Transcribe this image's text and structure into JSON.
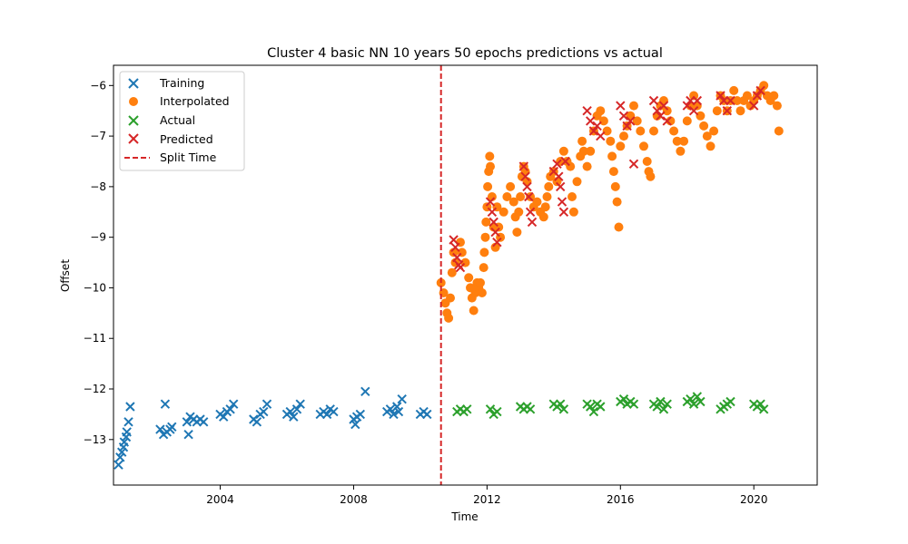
{
  "chart_data": {
    "type": "scatter",
    "title": "Cluster 4 basic NN 10 years 50 epochs predictions vs actual",
    "xlabel": "Time",
    "ylabel": "Offset",
    "xlim": [
      2000.8,
      2021.9
    ],
    "ylim": [
      -13.9,
      -5.6
    ],
    "xticks": [
      2004,
      2008,
      2012,
      2016,
      2020
    ],
    "yticks": [
      -13,
      -12,
      -11,
      -10,
      -9,
      -8,
      -7,
      -6
    ],
    "legend_position": "upper left",
    "grid": false,
    "split_time": 2010.62,
    "series": [
      {
        "name": "Training",
        "marker": "x",
        "color": "#1f77b4",
        "points": [
          [
            2000.95,
            -13.5
          ],
          [
            2001.0,
            -13.35
          ],
          [
            2001.05,
            -13.25
          ],
          [
            2001.1,
            -13.15
          ],
          [
            2001.12,
            -13.05
          ],
          [
            2001.18,
            -12.95
          ],
          [
            2001.2,
            -12.85
          ],
          [
            2001.25,
            -12.65
          ],
          [
            2001.3,
            -12.35
          ],
          [
            2002.2,
            -12.8
          ],
          [
            2002.3,
            -12.9
          ],
          [
            2002.35,
            -12.3
          ],
          [
            2002.4,
            -12.85
          ],
          [
            2002.5,
            -12.8
          ],
          [
            2002.55,
            -12.75
          ],
          [
            2003.0,
            -12.65
          ],
          [
            2003.05,
            -12.9
          ],
          [
            2003.1,
            -12.55
          ],
          [
            2003.2,
            -12.6
          ],
          [
            2003.3,
            -12.65
          ],
          [
            2003.4,
            -12.6
          ],
          [
            2003.5,
            -12.65
          ],
          [
            2004.0,
            -12.5
          ],
          [
            2004.1,
            -12.55
          ],
          [
            2004.2,
            -12.45
          ],
          [
            2004.3,
            -12.4
          ],
          [
            2004.4,
            -12.3
          ],
          [
            2005.0,
            -12.6
          ],
          [
            2005.1,
            -12.65
          ],
          [
            2005.2,
            -12.5
          ],
          [
            2005.3,
            -12.45
          ],
          [
            2005.4,
            -12.3
          ],
          [
            2006.0,
            -12.5
          ],
          [
            2006.1,
            -12.45
          ],
          [
            2006.2,
            -12.55
          ],
          [
            2006.3,
            -12.4
          ],
          [
            2006.4,
            -12.3
          ],
          [
            2007.0,
            -12.5
          ],
          [
            2007.1,
            -12.45
          ],
          [
            2007.2,
            -12.5
          ],
          [
            2007.3,
            -12.4
          ],
          [
            2007.4,
            -12.45
          ],
          [
            2008.0,
            -12.6
          ],
          [
            2008.05,
            -12.7
          ],
          [
            2008.1,
            -12.55
          ],
          [
            2008.2,
            -12.5
          ],
          [
            2008.35,
            -12.05
          ],
          [
            2009.0,
            -12.45
          ],
          [
            2009.1,
            -12.4
          ],
          [
            2009.2,
            -12.5
          ],
          [
            2009.3,
            -12.35
          ],
          [
            2009.35,
            -12.45
          ],
          [
            2009.45,
            -12.2
          ],
          [
            2010.0,
            -12.5
          ],
          [
            2010.1,
            -12.45
          ],
          [
            2010.2,
            -12.5
          ]
        ]
      },
      {
        "name": "Interpolated",
        "marker": "o",
        "color": "#ff7f0e",
        "points": [
          [
            2010.62,
            -9.9
          ],
          [
            2010.7,
            -10.1
          ],
          [
            2010.75,
            -10.3
          ],
          [
            2010.8,
            -10.5
          ],
          [
            2010.85,
            -10.6
          ],
          [
            2010.9,
            -10.2
          ],
          [
            2010.95,
            -9.7
          ],
          [
            2011.0,
            -9.3
          ],
          [
            2011.05,
            -9.5
          ],
          [
            2011.2,
            -9.1
          ],
          [
            2011.25,
            -9.3
          ],
          [
            2011.35,
            -9.5
          ],
          [
            2011.45,
            -9.8
          ],
          [
            2011.5,
            -10.0
          ],
          [
            2011.55,
            -10.2
          ],
          [
            2011.6,
            -10.45
          ],
          [
            2011.65,
            -10.1
          ],
          [
            2011.7,
            -9.9
          ],
          [
            2011.75,
            -10.0
          ],
          [
            2011.8,
            -9.9
          ],
          [
            2011.85,
            -10.1
          ],
          [
            2011.9,
            -9.6
          ],
          [
            2011.92,
            -9.3
          ],
          [
            2011.95,
            -9.0
          ],
          [
            2011.97,
            -8.7
          ],
          [
            2012.0,
            -8.4
          ],
          [
            2012.02,
            -8.0
          ],
          [
            2012.05,
            -7.7
          ],
          [
            2012.08,
            -7.4
          ],
          [
            2012.1,
            -7.6
          ],
          [
            2012.15,
            -8.2
          ],
          [
            2012.2,
            -8.8
          ],
          [
            2012.25,
            -9.2
          ],
          [
            2012.3,
            -8.4
          ],
          [
            2012.35,
            -8.8
          ],
          [
            2012.4,
            -9.0
          ],
          [
            2012.5,
            -8.5
          ],
          [
            2012.6,
            -8.2
          ],
          [
            2012.7,
            -8.0
          ],
          [
            2012.8,
            -8.3
          ],
          [
            2012.85,
            -8.6
          ],
          [
            2012.9,
            -8.9
          ],
          [
            2012.95,
            -8.5
          ],
          [
            2013.0,
            -8.2
          ],
          [
            2013.05,
            -7.8
          ],
          [
            2013.1,
            -7.6
          ],
          [
            2013.15,
            -7.7
          ],
          [
            2013.2,
            -7.9
          ],
          [
            2013.3,
            -8.2
          ],
          [
            2013.4,
            -8.4
          ],
          [
            2013.5,
            -8.3
          ],
          [
            2013.6,
            -8.5
          ],
          [
            2013.7,
            -8.6
          ],
          [
            2013.75,
            -8.4
          ],
          [
            2013.8,
            -8.2
          ],
          [
            2013.85,
            -8.0
          ],
          [
            2013.9,
            -7.8
          ],
          [
            2014.0,
            -7.7
          ],
          [
            2014.1,
            -7.9
          ],
          [
            2014.2,
            -7.5
          ],
          [
            2014.3,
            -7.3
          ],
          [
            2014.4,
            -7.5
          ],
          [
            2014.5,
            -7.6
          ],
          [
            2014.55,
            -8.2
          ],
          [
            2014.6,
            -8.5
          ],
          [
            2014.7,
            -7.9
          ],
          [
            2014.8,
            -7.4
          ],
          [
            2014.85,
            -7.1
          ],
          [
            2014.9,
            -7.3
          ],
          [
            2015.0,
            -7.6
          ],
          [
            2015.1,
            -7.3
          ],
          [
            2015.2,
            -6.9
          ],
          [
            2015.3,
            -6.6
          ],
          [
            2015.4,
            -6.5
          ],
          [
            2015.5,
            -6.7
          ],
          [
            2015.6,
            -6.9
          ],
          [
            2015.7,
            -7.1
          ],
          [
            2015.75,
            -7.4
          ],
          [
            2015.8,
            -7.7
          ],
          [
            2015.85,
            -8.0
          ],
          [
            2015.9,
            -8.3
          ],
          [
            2015.95,
            -8.8
          ],
          [
            2016.0,
            -7.2
          ],
          [
            2016.1,
            -7.0
          ],
          [
            2016.2,
            -6.8
          ],
          [
            2016.3,
            -6.6
          ],
          [
            2016.4,
            -6.4
          ],
          [
            2016.5,
            -6.7
          ],
          [
            2016.6,
            -6.9
          ],
          [
            2016.7,
            -7.2
          ],
          [
            2016.8,
            -7.5
          ],
          [
            2016.85,
            -7.7
          ],
          [
            2016.9,
            -7.8
          ],
          [
            2017.0,
            -6.9
          ],
          [
            2017.1,
            -6.6
          ],
          [
            2017.2,
            -6.4
          ],
          [
            2017.3,
            -6.3
          ],
          [
            2017.4,
            -6.5
          ],
          [
            2017.5,
            -6.7
          ],
          [
            2017.6,
            -6.9
          ],
          [
            2017.7,
            -7.1
          ],
          [
            2017.8,
            -7.3
          ],
          [
            2017.9,
            -7.1
          ],
          [
            2018.0,
            -6.7
          ],
          [
            2018.1,
            -6.4
          ],
          [
            2018.2,
            -6.2
          ],
          [
            2018.3,
            -6.4
          ],
          [
            2018.4,
            -6.6
          ],
          [
            2018.5,
            -6.8
          ],
          [
            2018.6,
            -7.0
          ],
          [
            2018.7,
            -7.2
          ],
          [
            2018.8,
            -6.9
          ],
          [
            2018.9,
            -6.5
          ],
          [
            2019.0,
            -6.2
          ],
          [
            2019.1,
            -6.3
          ],
          [
            2019.2,
            -6.5
          ],
          [
            2019.3,
            -6.3
          ],
          [
            2019.4,
            -6.1
          ],
          [
            2019.5,
            -6.3
          ],
          [
            2019.6,
            -6.5
          ],
          [
            2019.7,
            -6.3
          ],
          [
            2019.8,
            -6.2
          ],
          [
            2019.9,
            -6.4
          ],
          [
            2020.0,
            -6.3
          ],
          [
            2020.1,
            -6.2
          ],
          [
            2020.2,
            -6.1
          ],
          [
            2020.3,
            -6.0
          ],
          [
            2020.4,
            -6.2
          ],
          [
            2020.5,
            -6.3
          ],
          [
            2020.6,
            -6.2
          ],
          [
            2020.7,
            -6.4
          ],
          [
            2020.75,
            -6.9
          ]
        ]
      },
      {
        "name": "Actual",
        "marker": "x",
        "color": "#2ca02c",
        "points": [
          [
            2011.1,
            -12.45
          ],
          [
            2011.2,
            -12.4
          ],
          [
            2011.3,
            -12.45
          ],
          [
            2011.4,
            -12.4
          ],
          [
            2012.1,
            -12.4
          ],
          [
            2012.2,
            -12.5
          ],
          [
            2012.3,
            -12.45
          ],
          [
            2013.0,
            -12.35
          ],
          [
            2013.1,
            -12.4
          ],
          [
            2013.2,
            -12.35
          ],
          [
            2013.3,
            -12.4
          ],
          [
            2014.0,
            -12.3
          ],
          [
            2014.1,
            -12.35
          ],
          [
            2014.2,
            -12.3
          ],
          [
            2014.3,
            -12.4
          ],
          [
            2015.0,
            -12.3
          ],
          [
            2015.1,
            -12.35
          ],
          [
            2015.2,
            -12.45
          ],
          [
            2015.3,
            -12.3
          ],
          [
            2015.4,
            -12.35
          ],
          [
            2016.0,
            -12.25
          ],
          [
            2016.1,
            -12.2
          ],
          [
            2016.2,
            -12.3
          ],
          [
            2016.3,
            -12.25
          ],
          [
            2016.4,
            -12.3
          ],
          [
            2017.0,
            -12.3
          ],
          [
            2017.1,
            -12.35
          ],
          [
            2017.2,
            -12.25
          ],
          [
            2017.3,
            -12.4
          ],
          [
            2017.4,
            -12.3
          ],
          [
            2018.0,
            -12.25
          ],
          [
            2018.1,
            -12.2
          ],
          [
            2018.2,
            -12.3
          ],
          [
            2018.3,
            -12.15
          ],
          [
            2018.4,
            -12.25
          ],
          [
            2019.0,
            -12.4
          ],
          [
            2019.1,
            -12.35
          ],
          [
            2019.2,
            -12.3
          ],
          [
            2019.3,
            -12.25
          ],
          [
            2020.0,
            -12.3
          ],
          [
            2020.1,
            -12.35
          ],
          [
            2020.2,
            -12.3
          ],
          [
            2020.3,
            -12.4
          ]
        ]
      },
      {
        "name": "Predicted",
        "marker": "x",
        "color": "#d62728",
        "points": [
          [
            2011.0,
            -9.05
          ],
          [
            2011.05,
            -9.2
          ],
          [
            2011.1,
            -9.4
          ],
          [
            2011.15,
            -9.55
          ],
          [
            2011.2,
            -9.6
          ],
          [
            2012.1,
            -8.3
          ],
          [
            2012.15,
            -8.5
          ],
          [
            2012.2,
            -8.7
          ],
          [
            2012.25,
            -8.9
          ],
          [
            2012.3,
            -9.1
          ],
          [
            2013.1,
            -7.6
          ],
          [
            2013.15,
            -7.8
          ],
          [
            2013.2,
            -8.0
          ],
          [
            2013.25,
            -8.2
          ],
          [
            2013.3,
            -8.5
          ],
          [
            2013.35,
            -8.7
          ],
          [
            2014.0,
            -7.7
          ],
          [
            2014.1,
            -7.55
          ],
          [
            2014.15,
            -7.8
          ],
          [
            2014.2,
            -8.0
          ],
          [
            2014.25,
            -8.3
          ],
          [
            2014.3,
            -8.5
          ],
          [
            2014.35,
            -7.5
          ],
          [
            2015.0,
            -6.5
          ],
          [
            2015.1,
            -6.7
          ],
          [
            2015.2,
            -6.9
          ],
          [
            2015.3,
            -6.8
          ],
          [
            2015.4,
            -7.0
          ],
          [
            2016.0,
            -6.4
          ],
          [
            2016.1,
            -6.6
          ],
          [
            2016.2,
            -6.8
          ],
          [
            2016.3,
            -6.7
          ],
          [
            2016.4,
            -7.55
          ],
          [
            2017.0,
            -6.3
          ],
          [
            2017.1,
            -6.5
          ],
          [
            2017.2,
            -6.6
          ],
          [
            2017.3,
            -6.4
          ],
          [
            2017.4,
            -6.7
          ],
          [
            2018.0,
            -6.4
          ],
          [
            2018.1,
            -6.3
          ],
          [
            2018.2,
            -6.5
          ],
          [
            2018.3,
            -6.3
          ],
          [
            2019.0,
            -6.2
          ],
          [
            2019.1,
            -6.3
          ],
          [
            2019.2,
            -6.5
          ],
          [
            2019.3,
            -6.3
          ],
          [
            2020.0,
            -6.4
          ],
          [
            2020.1,
            -6.2
          ],
          [
            2020.2,
            -6.1
          ]
        ]
      }
    ]
  },
  "legend": {
    "training": "Training",
    "interpolated": "Interpolated",
    "actual": "Actual",
    "predicted": "Predicted",
    "split_time": "Split Time"
  }
}
